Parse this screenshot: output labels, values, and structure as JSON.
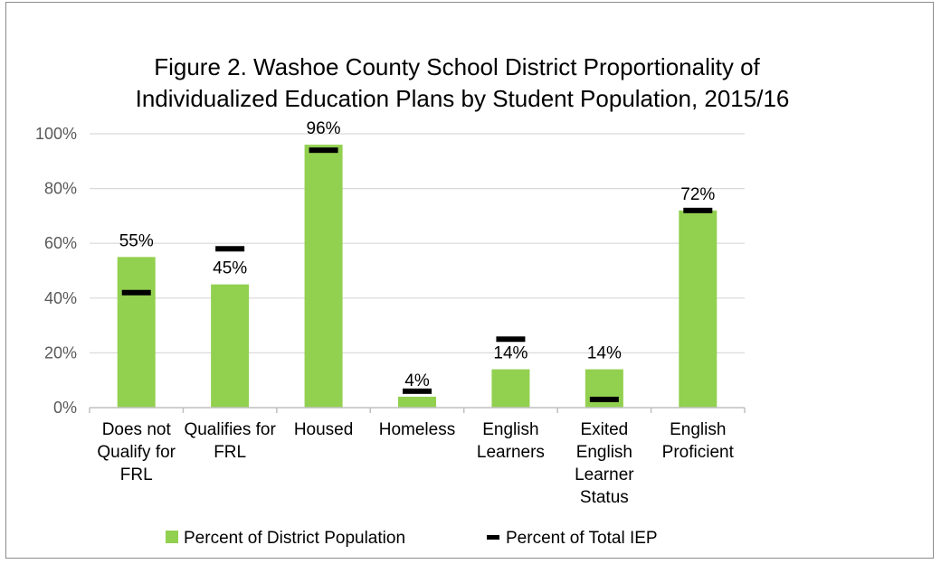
{
  "chart_data": {
    "type": "bar",
    "title": [
      "Figure 2. Washoe County School District Proportionality of",
      "Individualized Education Plans by Student Population, 2015/16"
    ],
    "categories": [
      [
        "Does not",
        "Qualify for",
        "FRL"
      ],
      [
        "Qualifies for",
        "FRL"
      ],
      [
        "Housed"
      ],
      [
        "Homeless"
      ],
      [
        "English",
        "Learners"
      ],
      [
        "Exited",
        "English",
        "Learner",
        "Status"
      ],
      [
        "English",
        "Proficient"
      ]
    ],
    "series": [
      {
        "name": "Percent of District Population",
        "type": "bar",
        "color": "#92d050",
        "values": [
          55,
          45,
          96,
          4,
          14,
          14,
          72
        ],
        "data_labels": [
          "55%",
          "45%",
          "96%",
          "4%",
          "14%",
          "14%",
          "72%"
        ]
      },
      {
        "name": "Percent of Total IEP",
        "type": "marker",
        "color": "#000000",
        "values": [
          42,
          58,
          94,
          6,
          25,
          3,
          72
        ]
      }
    ],
    "y_ticks": [
      "0%",
      "20%",
      "40%",
      "60%",
      "80%",
      "100%"
    ],
    "ylim": [
      0,
      100
    ],
    "grid": true,
    "legend_position": "bottom"
  }
}
